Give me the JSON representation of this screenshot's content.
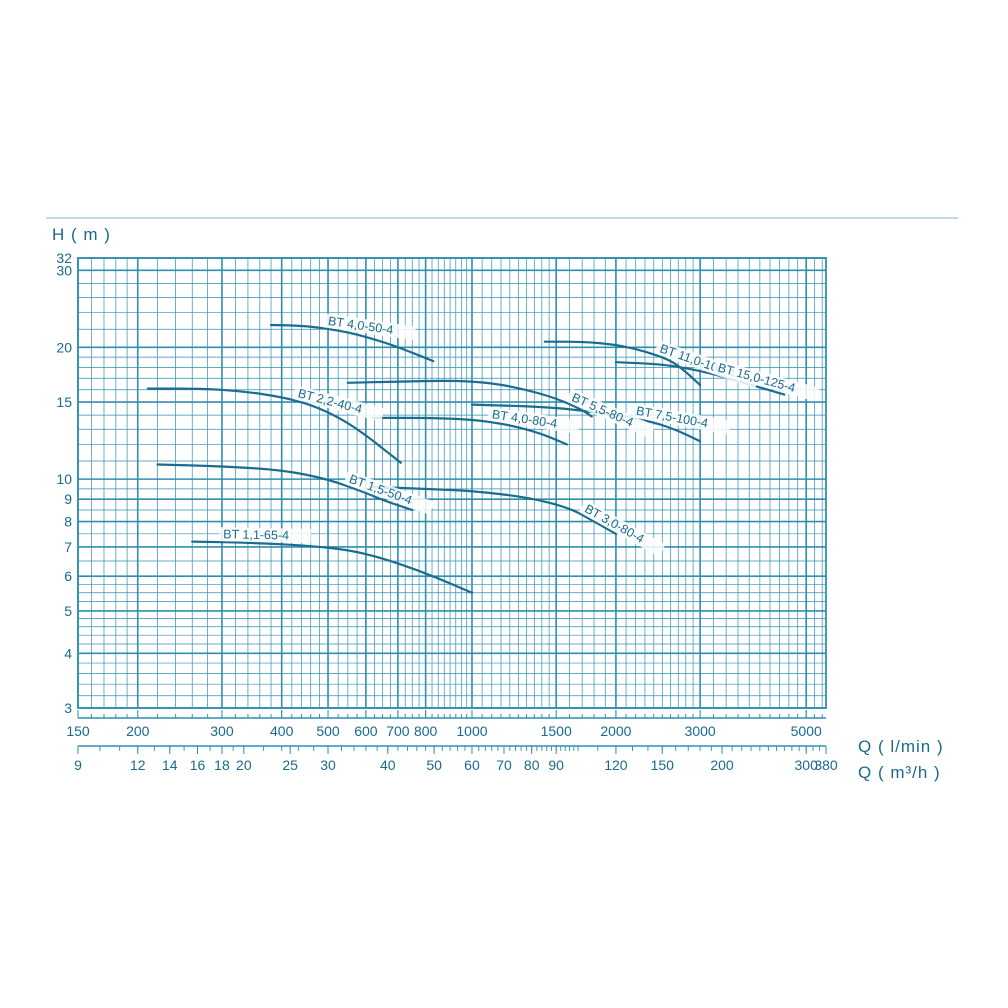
{
  "colors": {
    "grid": "#2f8fb0",
    "curve": "#1b6c8e",
    "text": "#1a6a8c",
    "rule": "#7fb4cc"
  },
  "chart_data": {
    "type": "line",
    "title": "",
    "ylabel": "H ( m )",
    "xlabel": "Q ( l/min )",
    "xlabel2": "Q ( m³/h )",
    "x_scale": "log",
    "y_scale": "log",
    "xlim": [
      150,
      5500
    ],
    "ylim": [
      3,
      32
    ],
    "grid": true,
    "x_ticks_lmin": [
      "150",
      "200",
      "300",
      "400",
      "500",
      "600",
      "700",
      "800",
      "1000",
      "1500",
      "2000",
      "3000",
      "5000"
    ],
    "x_ticks_m3h": [
      "9",
      "12",
      "14",
      "16",
      "18",
      "20",
      "25",
      "30",
      "40",
      "50",
      "60",
      "70",
      "80",
      "90",
      "120",
      "150",
      "200",
      "300",
      "380"
    ],
    "y_ticks": [
      "3",
      "4",
      "5",
      "6",
      "7",
      "8",
      "9",
      "10",
      "15",
      "20",
      "30",
      "32"
    ],
    "series": [
      {
        "name": "BT 4,0-50-4",
        "x": [
          380,
          450,
          550,
          650,
          720,
          830
        ],
        "y": [
          22.5,
          22.4,
          21.7,
          20.6,
          19.8,
          18.6
        ]
      },
      {
        "name": "BT 2,2-40-4",
        "x": [
          210,
          270,
          330,
          400,
          460,
          530,
          600,
          660,
          710
        ],
        "y": [
          16.1,
          16.1,
          15.9,
          15.4,
          14.8,
          13.8,
          12.6,
          11.6,
          10.9
        ]
      },
      {
        "name": "BT 11,0-100-4",
        "x": [
          1420,
          1700,
          2000,
          2300,
          2600,
          2800,
          3000
        ],
        "y": [
          20.6,
          20.6,
          20.3,
          19.6,
          18.7,
          17.6,
          16.4
        ]
      },
      {
        "name": "BT 15,0-125-4",
        "x": [
          2000,
          2500,
          3000,
          3500,
          4000,
          4500
        ],
        "y": [
          18.5,
          18.3,
          17.7,
          16.9,
          16.2,
          15.6
        ]
      },
      {
        "name": "BT 5,5-80-4",
        "x": [
          550,
          700,
          900,
          1100,
          1300,
          1500,
          1700,
          1780
        ],
        "y": [
          16.6,
          16.7,
          16.8,
          16.6,
          16.0,
          15.3,
          14.4,
          13.9
        ]
      },
      {
        "name": "BT 7,5-100-4",
        "x": [
          1000,
          1500,
          2000,
          2400,
          2700,
          3000
        ],
        "y": [
          14.8,
          14.6,
          14.0,
          13.5,
          12.9,
          12.2
        ]
      },
      {
        "name": "BT 4,0-80-4",
        "x": [
          620,
          800,
          1000,
          1200,
          1400,
          1580
        ],
        "y": [
          13.8,
          13.8,
          13.7,
          13.3,
          12.7,
          12.0
        ]
      },
      {
        "name": "BT 1,5-50-4",
        "x": [
          220,
          300,
          400,
          500,
          600,
          660,
          750
        ],
        "y": [
          10.8,
          10.7,
          10.5,
          10.0,
          9.3,
          8.9,
          8.5
        ]
      },
      {
        "name": "BT 3,0-80-4",
        "x": [
          620,
          800,
          1000,
          1300,
          1600,
          1800,
          2000
        ],
        "y": [
          9.6,
          9.5,
          9.4,
          9.1,
          8.6,
          8.0,
          7.5
        ]
      },
      {
        "name": "BT 1,1-65-4",
        "x": [
          260,
          350,
          450,
          550,
          650,
          800,
          1000
        ],
        "y": [
          7.2,
          7.15,
          7.05,
          6.9,
          6.6,
          6.1,
          5.5
        ]
      }
    ]
  }
}
